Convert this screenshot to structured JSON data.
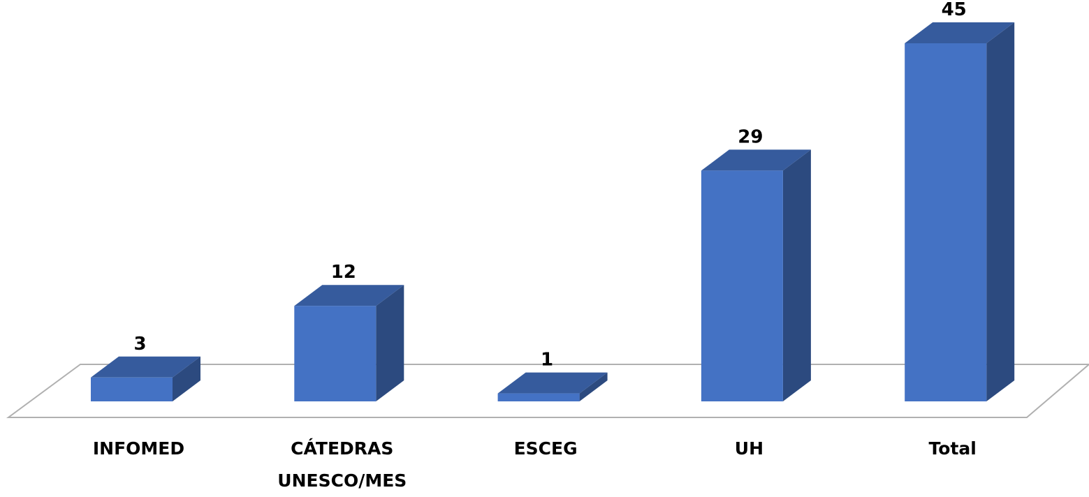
{
  "chart_data": {
    "type": "bar3d",
    "categories": [
      "INFOMED",
      "CÁTEDRAS UNESCO/MES",
      "ESCEG",
      "UH",
      "Total"
    ],
    "values": [
      3,
      12,
      1,
      29,
      45
    ],
    "color": "#4472c4"
  }
}
